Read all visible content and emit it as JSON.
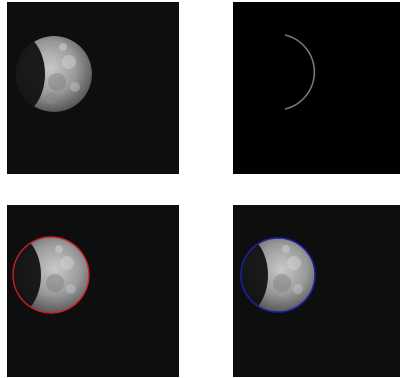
{
  "figure": {
    "panels": [
      {
        "id": "original-image",
        "content": "planet-gibbous-phase"
      },
      {
        "id": "edge-detection",
        "content": "limb-edge-arc"
      },
      {
        "id": "red-circle-fit",
        "content": "planet-with-fitted-circle",
        "circle_color": "#cc1f1f"
      },
      {
        "id": "blue-circle-fit",
        "content": "planet-with-fitted-circle",
        "circle_color": "#1d1fa8"
      }
    ],
    "background_color": "#0e0e0e",
    "edge_color": "#8a8a8a"
  }
}
